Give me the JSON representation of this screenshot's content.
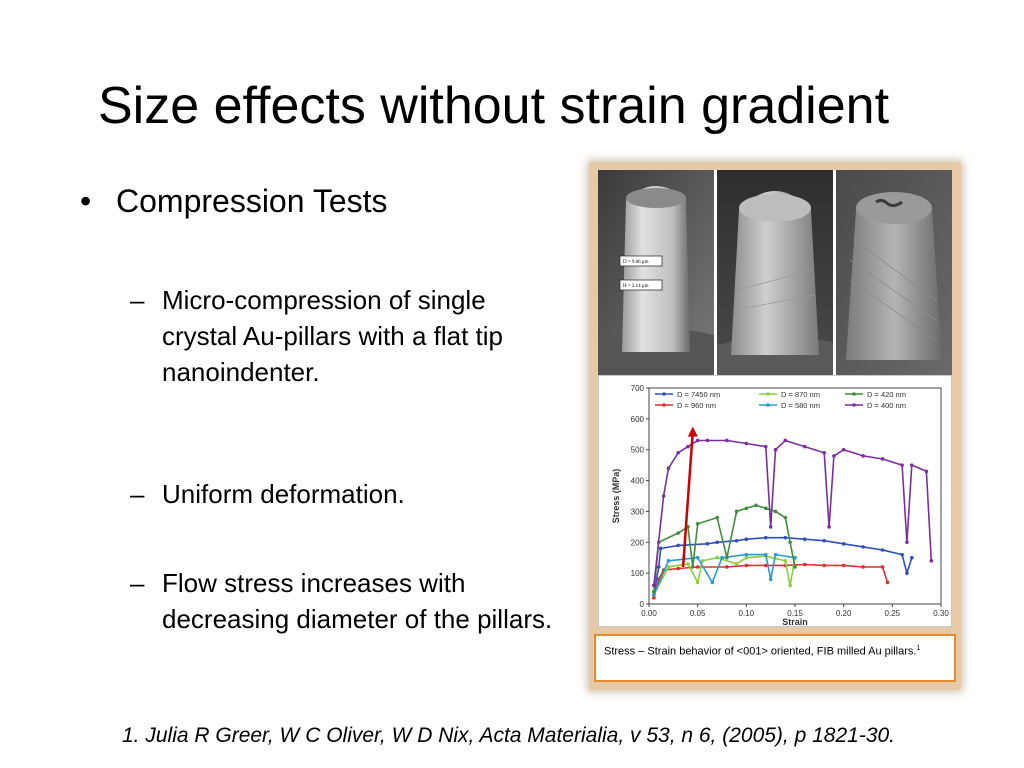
{
  "slide": {
    "title": "Size effects without strain gradient",
    "bullet": "Compression Tests",
    "subbullets": [
      "Micro-compression of single crystal Au-pillars with a flat tip nanoindenter.",
      "Uniform deformation.",
      "Flow stress increases with decreasing diameter of the pillars."
    ],
    "citation": "1. Julia R Greer, W C Oliver, W D Nix, Acta Materialia, v 53, n 6, (2005), p 1821-30."
  },
  "figure": {
    "sem_labels": [
      "D = 9.66 μm",
      "H = 2.14 μm"
    ],
    "caption": "Stress – Strain behavior of  <001> oriented, FIB milled Au pillars.",
    "caption_ref": "1"
  },
  "chart_data": {
    "type": "scatter",
    "xlabel": "Strain",
    "ylabel": "Stress (MPa)",
    "xlim": [
      0,
      0.3
    ],
    "ylim": [
      0,
      700
    ],
    "xticks": [
      "0.00",
      "0.05",
      "0.10",
      "0.15",
      "0.20",
      "0.25",
      "0.30"
    ],
    "yticks": [
      "0",
      "100",
      "200",
      "300",
      "400",
      "500",
      "600",
      "700"
    ],
    "legend_position": "top",
    "series": [
      {
        "name": "D = 7450 nm",
        "color": "#2f4fbf",
        "points": [
          [
            0.005,
            30
          ],
          [
            0.01,
            120
          ],
          [
            0.012,
            180
          ],
          [
            0.03,
            190
          ],
          [
            0.06,
            195
          ],
          [
            0.07,
            200
          ],
          [
            0.09,
            205
          ],
          [
            0.1,
            210
          ],
          [
            0.12,
            215
          ],
          [
            0.14,
            215
          ],
          [
            0.16,
            210
          ],
          [
            0.18,
            205
          ],
          [
            0.2,
            195
          ],
          [
            0.22,
            185
          ],
          [
            0.24,
            175
          ],
          [
            0.26,
            160
          ],
          [
            0.265,
            100
          ],
          [
            0.27,
            150
          ]
        ]
      },
      {
        "name": "D = 960 nm",
        "color": "#d93030",
        "points": [
          [
            0.005,
            20
          ],
          [
            0.01,
            80
          ],
          [
            0.015,
            110
          ],
          [
            0.03,
            115
          ],
          [
            0.05,
            120
          ],
          [
            0.08,
            120
          ],
          [
            0.1,
            125
          ],
          [
            0.12,
            125
          ],
          [
            0.14,
            125
          ],
          [
            0.16,
            128
          ],
          [
            0.18,
            125
          ],
          [
            0.2,
            125
          ],
          [
            0.22,
            120
          ],
          [
            0.24,
            120
          ],
          [
            0.245,
            70
          ]
        ]
      },
      {
        "name": "D = 870 nm",
        "color": "#8ccf3a",
        "points": [
          [
            0.005,
            30
          ],
          [
            0.02,
            120
          ],
          [
            0.04,
            130
          ],
          [
            0.05,
            70
          ],
          [
            0.055,
            140
          ],
          [
            0.07,
            150
          ],
          [
            0.09,
            130
          ],
          [
            0.1,
            150
          ],
          [
            0.12,
            155
          ],
          [
            0.14,
            140
          ],
          [
            0.145,
            60
          ],
          [
            0.15,
            150
          ]
        ]
      },
      {
        "name": "D = 580 nm",
        "color": "#2a9bd0",
        "points": [
          [
            0.005,
            30
          ],
          [
            0.02,
            140
          ],
          [
            0.05,
            150
          ],
          [
            0.065,
            70
          ],
          [
            0.075,
            150
          ],
          [
            0.1,
            160
          ],
          [
            0.12,
            160
          ],
          [
            0.125,
            80
          ],
          [
            0.13,
            160
          ],
          [
            0.15,
            150
          ]
        ]
      },
      {
        "name": "D = 420 nm",
        "color": "#3f8f3a",
        "points": [
          [
            0.005,
            40
          ],
          [
            0.01,
            200
          ],
          [
            0.03,
            230
          ],
          [
            0.04,
            250
          ],
          [
            0.045,
            120
          ],
          [
            0.05,
            260
          ],
          [
            0.07,
            280
          ],
          [
            0.08,
            150
          ],
          [
            0.09,
            300
          ],
          [
            0.1,
            310
          ],
          [
            0.11,
            320
          ],
          [
            0.12,
            310
          ],
          [
            0.13,
            300
          ],
          [
            0.14,
            280
          ],
          [
            0.145,
            200
          ],
          [
            0.15,
            120
          ]
        ]
      },
      {
        "name": "D = 400 nm",
        "color": "#7a2fa0",
        "points": [
          [
            0.005,
            60
          ],
          [
            0.015,
            350
          ],
          [
            0.02,
            440
          ],
          [
            0.03,
            490
          ],
          [
            0.04,
            510
          ],
          [
            0.05,
            530
          ],
          [
            0.06,
            530
          ],
          [
            0.08,
            530
          ],
          [
            0.1,
            520
          ],
          [
            0.12,
            510
          ],
          [
            0.125,
            250
          ],
          [
            0.13,
            500
          ],
          [
            0.14,
            530
          ],
          [
            0.16,
            510
          ],
          [
            0.18,
            490
          ],
          [
            0.185,
            250
          ],
          [
            0.19,
            480
          ],
          [
            0.2,
            500
          ],
          [
            0.22,
            480
          ],
          [
            0.24,
            470
          ],
          [
            0.26,
            450
          ],
          [
            0.265,
            200
          ],
          [
            0.27,
            450
          ],
          [
            0.285,
            430
          ],
          [
            0.29,
            140
          ]
        ]
      }
    ],
    "annotation": "red arrow pointing upward (increasing stress with decreasing diameter)"
  }
}
